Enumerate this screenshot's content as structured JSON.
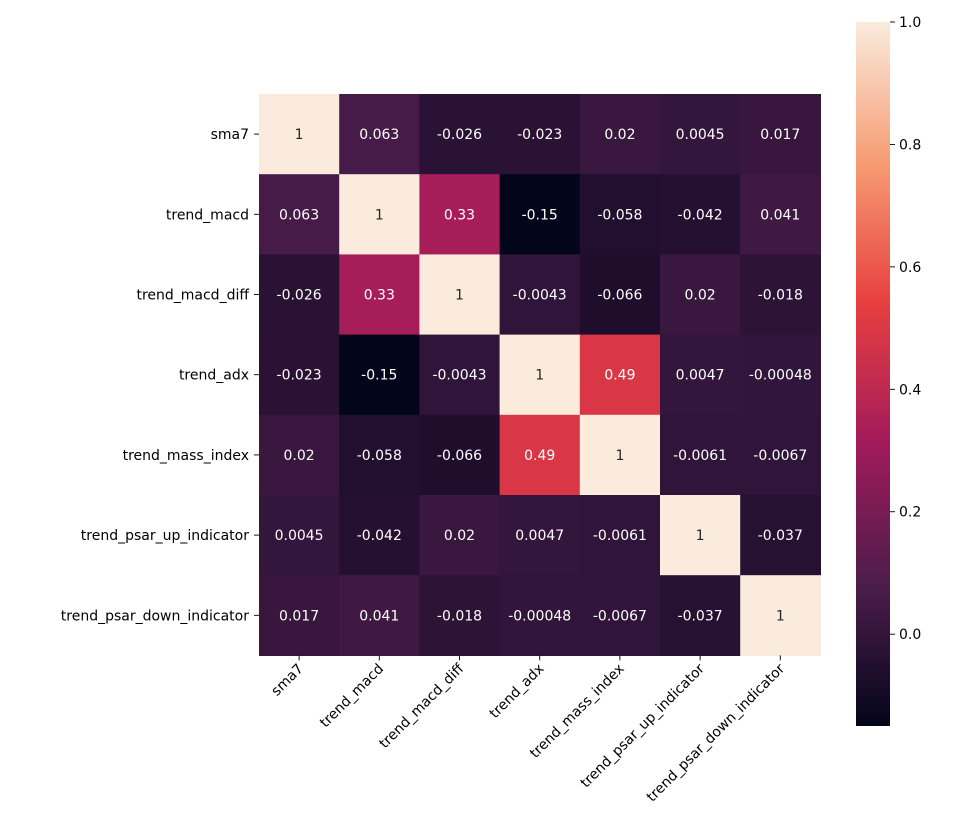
{
  "chart_data": {
    "type": "heatmap",
    "title": "",
    "xlabel": "",
    "ylabel": "",
    "rows": [
      "sma7",
      "trend_macd",
      "trend_macd_diff",
      "trend_adx",
      "trend_mass_index",
      "trend_psar_up_indicator",
      "trend_psar_down_indicator"
    ],
    "columns": [
      "sma7",
      "trend_macd",
      "trend_macd_diff",
      "trend_adx",
      "trend_mass_index",
      "trend_psar_up_indicator",
      "trend_psar_down_indicator"
    ],
    "values": [
      [
        1,
        0.063,
        -0.026,
        -0.023,
        0.02,
        0.0045,
        0.017
      ],
      [
        0.063,
        1,
        0.33,
        -0.15,
        -0.058,
        -0.042,
        0.041
      ],
      [
        -0.026,
        0.33,
        1,
        -0.0043,
        -0.066,
        0.02,
        -0.018
      ],
      [
        -0.023,
        -0.15,
        -0.0043,
        1,
        0.49,
        0.0047,
        -0.00048
      ],
      [
        0.02,
        -0.058,
        -0.066,
        0.49,
        1,
        -0.0061,
        -0.0067
      ],
      [
        0.0045,
        -0.042,
        0.02,
        0.0047,
        -0.0061,
        1,
        -0.037
      ],
      [
        0.017,
        0.041,
        -0.018,
        -0.00048,
        -0.0067,
        -0.037,
        1
      ]
    ],
    "annotations": [
      [
        "1",
        "0.063",
        "-0.026",
        "-0.023",
        "0.02",
        "0.0045",
        "0.017"
      ],
      [
        "0.063",
        "1",
        "0.33",
        "-0.15",
        "-0.058",
        "-0.042",
        "0.041"
      ],
      [
        "-0.026",
        "0.33",
        "1",
        "-0.0043",
        "-0.066",
        "0.02",
        "-0.018"
      ],
      [
        "-0.023",
        "-0.15",
        "-0.0043",
        "1",
        "0.49",
        "0.0047",
        "-0.00048"
      ],
      [
        "0.02",
        "-0.058",
        "-0.066",
        "0.49",
        "1",
        "-0.0061",
        "-0.0067"
      ],
      [
        "0.0045",
        "-0.042",
        "0.02",
        "0.0047",
        "-0.0061",
        "1",
        "-0.037"
      ],
      [
        "0.017",
        "0.041",
        "-0.018",
        "-0.00048",
        "-0.0067",
        "-0.037",
        "1"
      ]
    ],
    "colorbar": {
      "vmin": -0.15,
      "vmax": 1.0,
      "ticks": [
        0.0,
        0.2,
        0.4,
        0.6,
        0.8,
        1.0
      ],
      "tick_labels": [
        "0.0",
        "0.2",
        "0.4",
        "0.6",
        "0.8",
        "1.0"
      ],
      "colormap": "rocket",
      "colormap_stops": [
        "#03051a",
        "#4c1d4b",
        "#a11a5b",
        "#e83f3f",
        "#f69c73",
        "#faebdd"
      ]
    },
    "grid": false,
    "legend": "colorbar-right"
  }
}
